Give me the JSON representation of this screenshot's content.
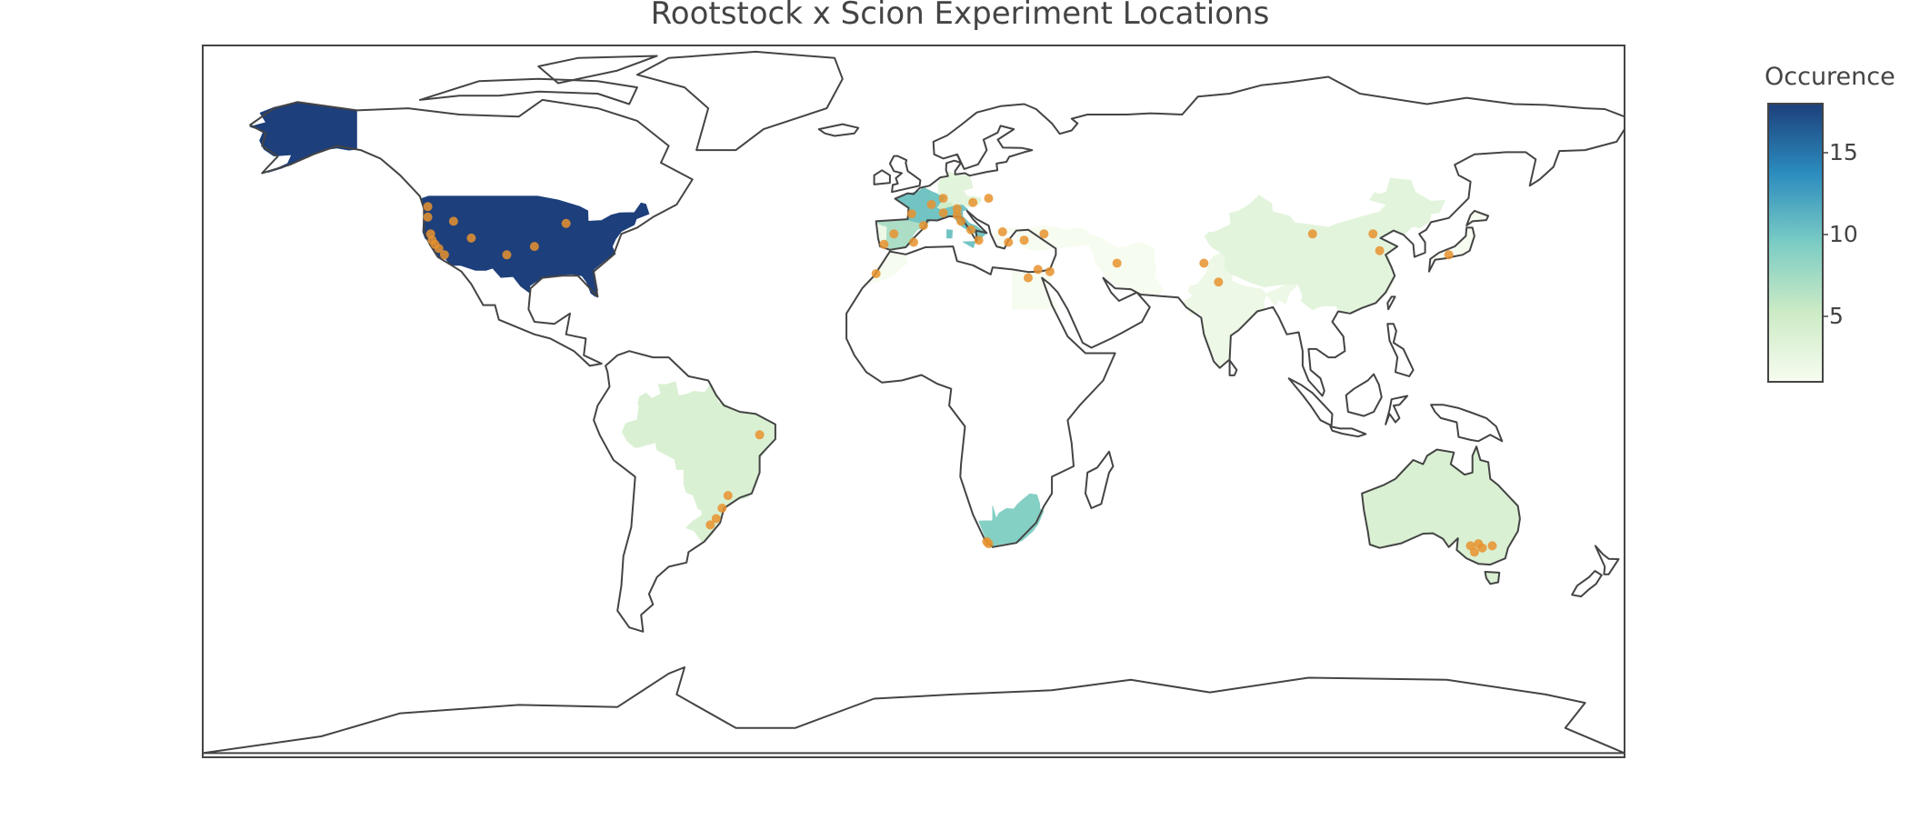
{
  "title": "Rootstock x Scion Experiment Locations",
  "colors": {
    "coastline": "#444444",
    "frame": "#444444",
    "marker": "#e8922e",
    "scale": [
      "#f7fcf0",
      "#ccebc5",
      "#7bccc4",
      "#2b8cbe",
      "#1d3f7b"
    ]
  },
  "chart_data": {
    "type": "choropleth-map",
    "projection": "equirectangular",
    "legend_placement": "right",
    "colorbar": {
      "title": "Occurence",
      "range": [
        1,
        18
      ],
      "ticks": [
        5,
        10,
        15
      ]
    },
    "countries": [
      {
        "name": "United States",
        "value": 18
      },
      {
        "name": "Spain",
        "value": 7
      },
      {
        "name": "France",
        "value": 10
      },
      {
        "name": "Italy",
        "value": 10
      },
      {
        "name": "Germany",
        "value": 3
      },
      {
        "name": "Switzerland",
        "value": 5
      },
      {
        "name": "Austria",
        "value": 3
      },
      {
        "name": "Portugal",
        "value": 2
      },
      {
        "name": "Morocco",
        "value": 1
      },
      {
        "name": "Greece",
        "value": 1
      },
      {
        "name": "Turkey",
        "value": 1
      },
      {
        "name": "Egypt",
        "value": 1
      },
      {
        "name": "Iran",
        "value": 1
      },
      {
        "name": "India",
        "value": 2
      },
      {
        "name": "China",
        "value": 3
      },
      {
        "name": "Japan",
        "value": 1
      },
      {
        "name": "Brazil",
        "value": 4
      },
      {
        "name": "South Africa",
        "value": 9
      },
      {
        "name": "Australia",
        "value": 4
      }
    ],
    "points": [
      {
        "lat": 46.5,
        "lon": -123.0
      },
      {
        "lat": 44.0,
        "lon": -123.0
      },
      {
        "lat": 40.0,
        "lon": -122.3
      },
      {
        "lat": 38.5,
        "lon": -121.9
      },
      {
        "lat": 37.5,
        "lon": -121.2
      },
      {
        "lat": 36.5,
        "lon": -120.2
      },
      {
        "lat": 35.0,
        "lon": -118.8
      },
      {
        "lat": 43.0,
        "lon": -116.5
      },
      {
        "lat": 39.0,
        "lon": -112.0
      },
      {
        "lat": 35.0,
        "lon": -103.0
      },
      {
        "lat": 37.0,
        "lon": -96.0
      },
      {
        "lat": 42.5,
        "lon": -88.0
      },
      {
        "lat": 37.5,
        "lon": -7.5
      },
      {
        "lat": 40.0,
        "lon": -5.0
      },
      {
        "lat": 38.0,
        "lon": 0.0
      },
      {
        "lat": 42.0,
        "lon": 2.5
      },
      {
        "lat": 44.8,
        "lon": -0.5
      },
      {
        "lat": 47.0,
        "lon": 4.5
      },
      {
        "lat": 48.5,
        "lon": 7.5
      },
      {
        "lat": 45.0,
        "lon": 7.5
      },
      {
        "lat": 44.5,
        "lon": 11.0
      },
      {
        "lat": 46.0,
        "lon": 11.0
      },
      {
        "lat": 43.0,
        "lon": 12.0
      },
      {
        "lat": 41.0,
        "lon": 14.5
      },
      {
        "lat": 38.5,
        "lon": 16.5
      },
      {
        "lat": 47.5,
        "lon": 15.0
      },
      {
        "lat": 48.5,
        "lon": 19.0
      },
      {
        "lat": 40.5,
        "lon": 22.5
      },
      {
        "lat": 38.0,
        "lon": 24.0
      },
      {
        "lat": 38.5,
        "lon": 28.0
      },
      {
        "lat": 40.0,
        "lon": 33.0
      },
      {
        "lat": 31.5,
        "lon": 31.5
      },
      {
        "lat": 29.5,
        "lon": 29.0
      },
      {
        "lat": 31.0,
        "lon": 34.5
      },
      {
        "lat": 33.0,
        "lon": 51.5
      },
      {
        "lat": 30.5,
        "lon": -9.5
      },
      {
        "lat": 33.0,
        "lon": 73.5
      },
      {
        "lat": 28.5,
        "lon": 77.2
      },
      {
        "lat": 40.0,
        "lon": 101.0
      },
      {
        "lat": 40.0,
        "lon": 116.3
      },
      {
        "lat": 36.0,
        "lon": 118.0
      },
      {
        "lat": 35.0,
        "lon": 135.5
      },
      {
        "lat": -8.0,
        "lon": -39.0
      },
      {
        "lat": -22.5,
        "lon": -47.0
      },
      {
        "lat": -25.5,
        "lon": -48.5
      },
      {
        "lat": -28.0,
        "lon": -50.0
      },
      {
        "lat": -29.5,
        "lon": -51.5
      },
      {
        "lat": -33.5,
        "lon": 18.5
      },
      {
        "lat": -34.0,
        "lon": 19.0
      },
      {
        "lat": -34.5,
        "lon": 141.0
      },
      {
        "lat": -34.0,
        "lon": 143.0
      },
      {
        "lat": -35.0,
        "lon": 144.0
      },
      {
        "lat": -36.0,
        "lon": 142.0
      },
      {
        "lat": -34.5,
        "lon": 146.5
      }
    ]
  }
}
